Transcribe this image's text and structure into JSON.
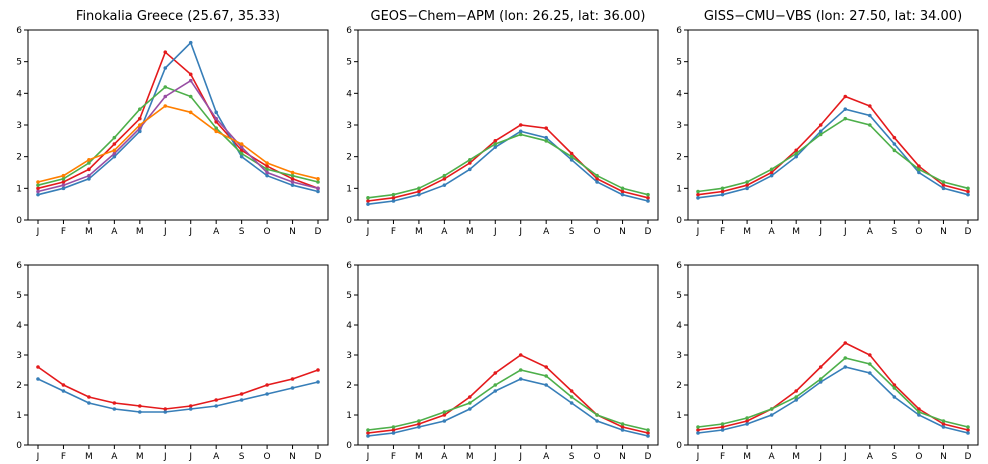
{
  "chart_data": [
    {
      "type": "line",
      "title": "Finokalia Greece (25.67, 35.33)",
      "categories": [
        "J",
        "F",
        "M",
        "A",
        "M",
        "J",
        "J",
        "A",
        "S",
        "O",
        "N",
        "D"
      ],
      "ylim": [
        0,
        6
      ],
      "yticks": [
        "0",
        "1",
        "2",
        "3",
        "4",
        "5",
        "6"
      ],
      "series": [
        {
          "color": "#e41a1c",
          "values": [
            1.0,
            1.2,
            1.6,
            2.4,
            3.2,
            5.3,
            4.6,
            3.1,
            2.2,
            1.7,
            1.3,
            1.0
          ]
        },
        {
          "color": "#377eb8",
          "values": [
            0.8,
            1.0,
            1.3,
            2.0,
            2.8,
            4.8,
            5.6,
            3.4,
            2.0,
            1.4,
            1.1,
            0.9
          ]
        },
        {
          "color": "#4daf4a",
          "values": [
            1.1,
            1.3,
            1.8,
            2.6,
            3.5,
            4.2,
            3.9,
            2.9,
            2.1,
            1.6,
            1.4,
            1.2
          ]
        },
        {
          "color": "#984ea3",
          "values": [
            0.9,
            1.1,
            1.4,
            2.1,
            2.9,
            3.9,
            4.4,
            3.2,
            2.3,
            1.5,
            1.2,
            1.0
          ]
        },
        {
          "color": "#ff7f00",
          "values": [
            1.2,
            1.4,
            1.9,
            2.2,
            3.0,
            3.6,
            3.4,
            2.8,
            2.4,
            1.8,
            1.5,
            1.3
          ]
        }
      ]
    },
    {
      "type": "line",
      "title": "GEOS−Chem−APM (lon: 26.25, lat: 36.00)",
      "categories": [
        "J",
        "F",
        "M",
        "A",
        "M",
        "J",
        "J",
        "A",
        "S",
        "O",
        "N",
        "D"
      ],
      "ylim": [
        0,
        6
      ],
      "yticks": [
        "0",
        "1",
        "2",
        "3",
        "4",
        "5",
        "6"
      ],
      "series": [
        {
          "color": "#e41a1c",
          "values": [
            0.6,
            0.7,
            0.9,
            1.3,
            1.8,
            2.5,
            3.0,
            2.9,
            2.1,
            1.3,
            0.9,
            0.7
          ]
        },
        {
          "color": "#377eb8",
          "values": [
            0.5,
            0.6,
            0.8,
            1.1,
            1.6,
            2.3,
            2.8,
            2.6,
            1.9,
            1.2,
            0.8,
            0.6
          ]
        },
        {
          "color": "#4daf4a",
          "values": [
            0.7,
            0.8,
            1.0,
            1.4,
            1.9,
            2.4,
            2.7,
            2.5,
            2.0,
            1.4,
            1.0,
            0.8
          ]
        }
      ]
    },
    {
      "type": "line",
      "title": "GISS−CMU−VBS (lon: 27.50, lat: 34.00)",
      "categories": [
        "J",
        "F",
        "M",
        "A",
        "M",
        "J",
        "J",
        "A",
        "S",
        "O",
        "N",
        "D"
      ],
      "ylim": [
        0,
        6
      ],
      "yticks": [
        "0",
        "1",
        "2",
        "3",
        "4",
        "5",
        "6"
      ],
      "series": [
        {
          "color": "#e41a1c",
          "values": [
            0.8,
            0.9,
            1.1,
            1.5,
            2.2,
            3.0,
            3.9,
            3.6,
            2.6,
            1.7,
            1.1,
            0.9
          ]
        },
        {
          "color": "#377eb8",
          "values": [
            0.7,
            0.8,
            1.0,
            1.4,
            2.0,
            2.8,
            3.5,
            3.3,
            2.4,
            1.5,
            1.0,
            0.8
          ]
        },
        {
          "color": "#4daf4a",
          "values": [
            0.9,
            1.0,
            1.2,
            1.6,
            2.1,
            2.7,
            3.2,
            3.0,
            2.2,
            1.6,
            1.2,
            1.0
          ]
        }
      ]
    },
    {
      "type": "line",
      "title": "",
      "categories": [
        "J",
        "F",
        "M",
        "A",
        "M",
        "J",
        "J",
        "A",
        "S",
        "O",
        "N",
        "D"
      ],
      "ylim": [
        0,
        6
      ],
      "yticks": [
        "0",
        "1",
        "2",
        "3",
        "4",
        "5",
        "6"
      ],
      "series": [
        {
          "color": "#e41a1c",
          "values": [
            2.6,
            2.0,
            1.6,
            1.4,
            1.3,
            1.2,
            1.3,
            1.5,
            1.7,
            2.0,
            2.2,
            2.5
          ]
        },
        {
          "color": "#377eb8",
          "values": [
            2.2,
            1.8,
            1.4,
            1.2,
            1.1,
            1.1,
            1.2,
            1.3,
            1.5,
            1.7,
            1.9,
            2.1
          ]
        }
      ]
    },
    {
      "type": "line",
      "title": "",
      "categories": [
        "J",
        "F",
        "M",
        "A",
        "M",
        "J",
        "J",
        "A",
        "S",
        "O",
        "N",
        "D"
      ],
      "ylim": [
        0,
        6
      ],
      "yticks": [
        "0",
        "1",
        "2",
        "3",
        "4",
        "5",
        "6"
      ],
      "series": [
        {
          "color": "#e41a1c",
          "values": [
            0.4,
            0.5,
            0.7,
            1.0,
            1.6,
            2.4,
            3.0,
            2.6,
            1.8,
            1.0,
            0.6,
            0.4
          ]
        },
        {
          "color": "#377eb8",
          "values": [
            0.3,
            0.4,
            0.6,
            0.8,
            1.2,
            1.8,
            2.2,
            2.0,
            1.4,
            0.8,
            0.5,
            0.3
          ]
        },
        {
          "color": "#4daf4a",
          "values": [
            0.5,
            0.6,
            0.8,
            1.1,
            1.4,
            2.0,
            2.5,
            2.3,
            1.6,
            1.0,
            0.7,
            0.5
          ]
        }
      ]
    },
    {
      "type": "line",
      "title": "",
      "categories": [
        "J",
        "F",
        "M",
        "A",
        "M",
        "J",
        "J",
        "A",
        "S",
        "O",
        "N",
        "D"
      ],
      "ylim": [
        0,
        6
      ],
      "yticks": [
        "0",
        "1",
        "2",
        "3",
        "4",
        "5",
        "6"
      ],
      "series": [
        {
          "color": "#e41a1c",
          "values": [
            0.5,
            0.6,
            0.8,
            1.2,
            1.8,
            2.6,
            3.4,
            3.0,
            2.0,
            1.2,
            0.7,
            0.5
          ]
        },
        {
          "color": "#377eb8",
          "values": [
            0.4,
            0.5,
            0.7,
            1.0,
            1.5,
            2.1,
            2.6,
            2.4,
            1.6,
            1.0,
            0.6,
            0.4
          ]
        },
        {
          "color": "#4daf4a",
          "values": [
            0.6,
            0.7,
            0.9,
            1.2,
            1.6,
            2.2,
            2.9,
            2.7,
            1.9,
            1.1,
            0.8,
            0.6
          ]
        }
      ]
    }
  ]
}
